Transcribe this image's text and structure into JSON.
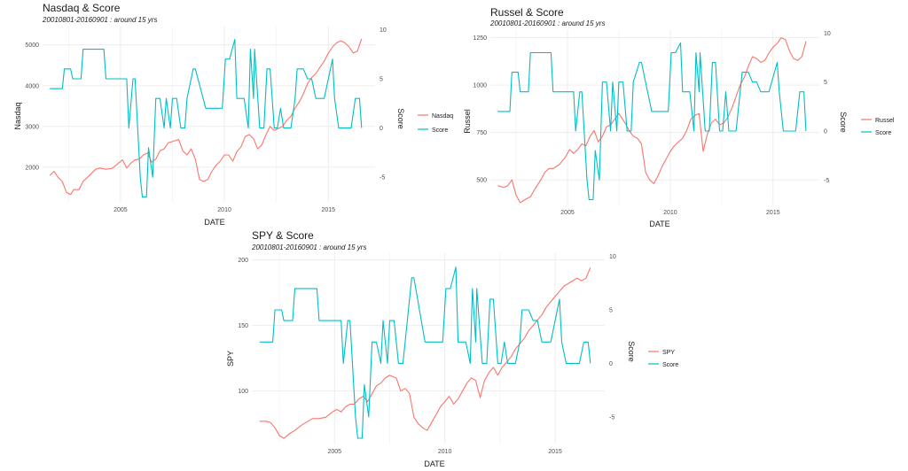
{
  "colors": {
    "index": "#F8766D",
    "score": "#00BFC4",
    "grid": "#ebebeb"
  },
  "chart_data": [
    {
      "type": "line",
      "title": "Nasdaq & Score",
      "subtitle": "20010801-20160901 : around 15 yrs",
      "xlabel": "DATE",
      "ylabel": "Nasdaq",
      "ylabel_right": "Score",
      "xticks": [
        "2005",
        "2010",
        "2015"
      ],
      "yticks_left": [
        "2000",
        "3000",
        "4000",
        "5000"
      ],
      "yticks_right": [
        "-5",
        "0",
        "5",
        "10"
      ],
      "legend": [
        "Nasdaq",
        "Score"
      ],
      "legend_position": "right",
      "grid": true,
      "xlim": [
        2001.25,
        2017.25
      ],
      "ylim": [
        1150,
        5450
      ],
      "score_lim": [
        -7.5,
        10.3
      ],
      "series": [
        {
          "name": "Nasdaq",
          "color_key": "index",
          "x": [
            2001.6,
            2001.8,
            2002.0,
            2002.2,
            2002.4,
            2002.6,
            2002.75,
            2003.0,
            2003.2,
            2003.5,
            2003.8,
            2004.0,
            2004.3,
            2004.6,
            2004.9,
            2005.1,
            2005.3,
            2005.5,
            2005.7,
            2005.9,
            2006.1,
            2006.3,
            2006.5,
            2006.7,
            2006.9,
            2007.1,
            2007.3,
            2007.5,
            2007.8,
            2008.0,
            2008.2,
            2008.4,
            2008.6,
            2008.8,
            2009.0,
            2009.2,
            2009.4,
            2009.6,
            2009.8,
            2010.0,
            2010.2,
            2010.4,
            2010.6,
            2010.8,
            2011.0,
            2011.2,
            2011.4,
            2011.6,
            2011.8,
            2012.0,
            2012.2,
            2012.4,
            2012.6,
            2012.8,
            2013.0,
            2013.2,
            2013.4,
            2013.6,
            2013.8,
            2014.0,
            2014.2,
            2014.4,
            2014.6,
            2014.8,
            2015.0,
            2015.2,
            2015.4,
            2015.6,
            2015.8,
            2016.0,
            2016.2,
            2016.4,
            2016.6
          ],
          "y": [
            1800,
            1900,
            1750,
            1650,
            1380,
            1330,
            1450,
            1450,
            1650,
            1800,
            1950,
            1980,
            1950,
            1970,
            2100,
            2180,
            1980,
            2100,
            2180,
            2200,
            2300,
            2350,
            2120,
            2200,
            2400,
            2450,
            2600,
            2630,
            2680,
            2400,
            2300,
            2450,
            2200,
            1700,
            1650,
            1700,
            1900,
            2050,
            2150,
            2300,
            2300,
            2150,
            2380,
            2500,
            2750,
            2800,
            2700,
            2450,
            2550,
            2800,
            3000,
            2900,
            2950,
            3000,
            3150,
            3250,
            3450,
            3600,
            3800,
            4050,
            4200,
            4300,
            4450,
            4600,
            4800,
            4950,
            5050,
            5100,
            5050,
            4950,
            4800,
            4850,
            5150
          ]
        },
        {
          "name": "Score",
          "color_key": "score",
          "x": [
            2001.6,
            2002.2,
            2002.3,
            2002.6,
            2002.7,
            2003.1,
            2003.2,
            2004.2,
            2004.3,
            2005.1,
            2005.3,
            2005.4,
            2005.6,
            2005.7,
            2005.95,
            2006.05,
            2006.25,
            2006.35,
            2006.55,
            2006.7,
            2006.9,
            2007.1,
            2007.2,
            2007.4,
            2007.5,
            2007.7,
            2007.9,
            2008.1,
            2008.2,
            2008.5,
            2008.6,
            2009.1,
            2009.2,
            2009.5,
            2009.6,
            2009.9,
            2010.05,
            2010.25,
            2010.5,
            2010.6,
            2010.8,
            2010.95,
            2011.15,
            2011.25,
            2011.4,
            2011.45,
            2011.7,
            2011.9,
            2012.05,
            2012.2,
            2012.4,
            2012.55,
            2012.7,
            2012.85,
            2013.2,
            2013.4,
            2013.5,
            2013.8,
            2014.0,
            2014.2,
            2014.4,
            2014.5,
            2014.7,
            2014.8,
            2015.2,
            2015.3,
            2015.5,
            2015.8,
            2016.1,
            2016.3,
            2016.5,
            2016.6
          ],
          "y": [
            4,
            4,
            6,
            6,
            5,
            5,
            8,
            8,
            5,
            5,
            5,
            0,
            5,
            5,
            -5,
            -7,
            -7,
            -2,
            -5,
            3,
            3,
            0,
            3,
            0,
            3,
            3,
            0,
            0,
            3,
            6,
            6,
            2,
            2,
            2,
            2,
            2,
            7,
            7,
            9,
            3,
            3,
            3,
            0,
            8,
            3,
            8,
            0,
            0,
            6,
            6,
            0,
            0,
            2,
            0,
            0,
            3,
            6,
            6,
            5,
            5,
            3,
            3,
            3,
            3,
            7,
            3,
            0,
            0,
            0,
            3,
            3,
            0
          ]
        }
      ]
    },
    {
      "type": "line",
      "title": "Russel & Score",
      "subtitle": "20010801-20160901 : around 15 yrs",
      "xlabel": "DATE",
      "ylabel": "Russel",
      "ylabel_right": "Score",
      "xticks": [
        "2005",
        "2010",
        "2015"
      ],
      "yticks_left": [
        "500",
        "750",
        "1000",
        "1250"
      ],
      "yticks_right": [
        "-5",
        "0",
        "5",
        "10"
      ],
      "legend": [
        "Russel",
        "Score"
      ],
      "legend_position": "right",
      "grid": true,
      "xlim": [
        2001.25,
        2017.25
      ],
      "ylim": [
        370,
        1290
      ],
      "score_lim": [
        -7.5,
        10.3
      ],
      "series": [
        {
          "name": "Russel",
          "color_key": "index",
          "x": [
            2001.6,
            2001.9,
            2002.1,
            2002.3,
            2002.5,
            2002.7,
            2003.0,
            2003.2,
            2003.4,
            2003.7,
            2003.9,
            2004.1,
            2004.3,
            2004.6,
            2004.9,
            2005.1,
            2005.3,
            2005.5,
            2005.7,
            2005.9,
            2006.1,
            2006.3,
            2006.5,
            2006.7,
            2006.9,
            2007.1,
            2007.3,
            2007.5,
            2007.8,
            2008.0,
            2008.2,
            2008.4,
            2008.6,
            2008.8,
            2009.0,
            2009.2,
            2009.4,
            2009.6,
            2009.8,
            2010.0,
            2010.2,
            2010.4,
            2010.6,
            2010.8,
            2011.0,
            2011.2,
            2011.4,
            2011.6,
            2011.8,
            2012.0,
            2012.2,
            2012.4,
            2012.6,
            2012.8,
            2013.0,
            2013.2,
            2013.4,
            2013.6,
            2013.8,
            2014.0,
            2014.2,
            2014.4,
            2014.6,
            2014.8,
            2015.0,
            2015.2,
            2015.4,
            2015.6,
            2015.8,
            2016.0,
            2016.2,
            2016.4,
            2016.6
          ],
          "y": [
            470,
            460,
            470,
            500,
            420,
            380,
            400,
            410,
            450,
            500,
            540,
            560,
            560,
            580,
            620,
            660,
            640,
            660,
            690,
            680,
            730,
            760,
            700,
            730,
            780,
            790,
            820,
            850,
            800,
            760,
            730,
            720,
            690,
            540,
            500,
            480,
            520,
            570,
            610,
            650,
            680,
            700,
            720,
            760,
            820,
            840,
            850,
            650,
            740,
            800,
            820,
            790,
            800,
            830,
            880,
            940,
            1000,
            1040,
            1100,
            1150,
            1140,
            1120,
            1130,
            1170,
            1200,
            1220,
            1250,
            1240,
            1180,
            1140,
            1130,
            1150,
            1230
          ]
        },
        {
          "name": "Score",
          "color_key": "score",
          "x": [
            2001.6,
            2002.2,
            2002.3,
            2002.6,
            2002.7,
            2003.1,
            2003.2,
            2004.2,
            2004.3,
            2005.1,
            2005.3,
            2005.4,
            2005.6,
            2005.7,
            2005.95,
            2006.05,
            2006.25,
            2006.35,
            2006.55,
            2006.7,
            2006.9,
            2007.1,
            2007.2,
            2007.4,
            2007.5,
            2007.7,
            2007.9,
            2008.1,
            2008.2,
            2008.5,
            2008.6,
            2009.1,
            2009.2,
            2009.5,
            2009.6,
            2009.9,
            2010.05,
            2010.25,
            2010.5,
            2010.6,
            2010.8,
            2010.95,
            2011.15,
            2011.25,
            2011.4,
            2011.45,
            2011.7,
            2011.9,
            2012.05,
            2012.2,
            2012.4,
            2012.55,
            2012.7,
            2012.85,
            2013.2,
            2013.4,
            2013.5,
            2013.8,
            2014.0,
            2014.2,
            2014.4,
            2014.5,
            2014.7,
            2014.8,
            2015.2,
            2015.3,
            2015.5,
            2015.8,
            2016.1,
            2016.3,
            2016.5,
            2016.6
          ],
          "y": [
            2,
            2,
            6,
            6,
            4,
            4,
            8,
            8,
            4,
            4,
            4,
            0,
            4,
            4,
            -5,
            -7,
            -7,
            -2,
            -5,
            5,
            5,
            0,
            5,
            0,
            5,
            5,
            0,
            0,
            5,
            7,
            7,
            2,
            2,
            2,
            2,
            2,
            8,
            8,
            9,
            4,
            4,
            4,
            0,
            8,
            4,
            8,
            0,
            0,
            7,
            7,
            0,
            0,
            4,
            0,
            0,
            4,
            6,
            6,
            5,
            5,
            4,
            4,
            4,
            4,
            7,
            4,
            0,
            0,
            0,
            4,
            4,
            0
          ]
        }
      ]
    },
    {
      "type": "line",
      "title": "SPY & Score",
      "subtitle": "20010801-20160901 : around 15 yrs",
      "xlabel": "DATE",
      "ylabel": "SPY",
      "ylabel_right": "Score",
      "xticks": [
        "2005",
        "2010",
        "2015"
      ],
      "yticks_left": [
        "100",
        "150",
        "200"
      ],
      "yticks_right": [
        "-5",
        "0",
        "5",
        "10"
      ],
      "legend": [
        "SPY",
        "Score"
      ],
      "legend_position": "right",
      "grid": true,
      "xlim": [
        2001.25,
        2017.25
      ],
      "ylim": [
        60,
        205
      ],
      "score_lim": [
        -7.5,
        10.3
      ],
      "series": [
        {
          "name": "SPY",
          "color_key": "index",
          "x": [
            2001.6,
            2001.9,
            2002.1,
            2002.3,
            2002.5,
            2002.7,
            2003.0,
            2003.2,
            2003.5,
            2003.8,
            2004.0,
            2004.3,
            2004.6,
            2004.9,
            2005.1,
            2005.3,
            2005.5,
            2005.7,
            2005.9,
            2006.1,
            2006.3,
            2006.5,
            2006.7,
            2006.9,
            2007.1,
            2007.3,
            2007.5,
            2007.8,
            2008.0,
            2008.2,
            2008.4,
            2008.6,
            2008.8,
            2009.0,
            2009.2,
            2009.4,
            2009.6,
            2009.8,
            2010.0,
            2010.2,
            2010.4,
            2010.6,
            2010.8,
            2011.0,
            2011.2,
            2011.4,
            2011.6,
            2011.8,
            2012.0,
            2012.2,
            2012.4,
            2012.6,
            2012.8,
            2013.0,
            2013.2,
            2013.4,
            2013.6,
            2013.8,
            2014.0,
            2014.2,
            2014.4,
            2014.6,
            2014.8,
            2015.0,
            2015.2,
            2015.4,
            2015.6,
            2015.8,
            2016.0,
            2016.2,
            2016.4,
            2016.6
          ],
          "y": [
            77,
            77,
            76,
            72,
            66,
            64,
            68,
            70,
            74,
            77,
            79,
            79,
            80,
            84,
            86,
            84,
            88,
            90,
            90,
            94,
            96,
            92,
            98,
            104,
            106,
            110,
            112,
            110,
            100,
            102,
            98,
            80,
            75,
            72,
            70,
            76,
            82,
            88,
            92,
            96,
            90,
            94,
            100,
            106,
            110,
            108,
            95,
            108,
            114,
            118,
            112,
            118,
            122,
            126,
            132,
            136,
            140,
            146,
            150,
            154,
            158,
            164,
            168,
            172,
            176,
            180,
            182,
            184,
            186,
            184,
            186,
            194
          ]
        },
        {
          "name": "Score",
          "color_key": "score",
          "x": [
            2001.6,
            2002.2,
            2002.3,
            2002.6,
            2002.7,
            2003.1,
            2003.2,
            2004.2,
            2004.3,
            2005.1,
            2005.3,
            2005.4,
            2005.6,
            2005.7,
            2005.95,
            2006.05,
            2006.25,
            2006.35,
            2006.55,
            2006.7,
            2006.9,
            2007.1,
            2007.2,
            2007.4,
            2007.5,
            2007.7,
            2007.9,
            2008.1,
            2008.2,
            2008.5,
            2008.6,
            2009.1,
            2009.2,
            2009.5,
            2009.6,
            2009.9,
            2010.05,
            2010.25,
            2010.5,
            2010.6,
            2010.8,
            2010.95,
            2011.15,
            2011.25,
            2011.4,
            2011.45,
            2011.7,
            2011.9,
            2012.05,
            2012.2,
            2012.4,
            2012.55,
            2012.7,
            2012.85,
            2013.2,
            2013.4,
            2013.5,
            2013.8,
            2014.0,
            2014.2,
            2014.4,
            2014.5,
            2014.7,
            2014.8,
            2015.2,
            2015.3,
            2015.5,
            2015.8,
            2016.1,
            2016.3,
            2016.5,
            2016.6
          ],
          "y": [
            2,
            2,
            5,
            5,
            4,
            4,
            7,
            7,
            4,
            4,
            4,
            0,
            4,
            4,
            -5,
            -7,
            -7,
            -2,
            -5,
            2,
            2,
            0,
            4,
            0,
            4,
            4,
            0,
            0,
            2,
            8,
            8,
            2,
            2,
            2,
            2,
            2,
            7,
            7,
            9,
            2,
            2,
            2,
            0,
            7,
            2,
            7,
            0,
            0,
            6,
            6,
            0,
            0,
            2,
            0,
            0,
            2,
            5,
            5,
            4,
            4,
            2,
            2,
            2,
            2,
            6,
            2,
            0,
            0,
            0,
            2,
            2,
            0
          ]
        }
      ]
    }
  ]
}
